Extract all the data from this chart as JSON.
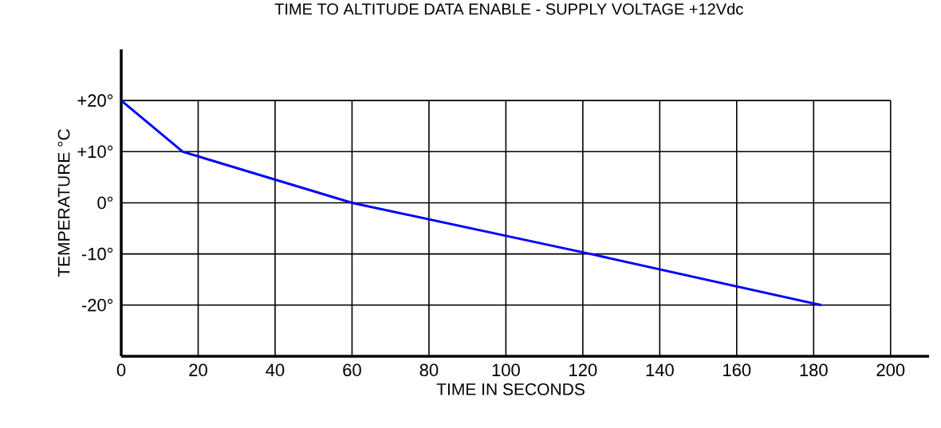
{
  "chart_data": {
    "type": "line",
    "title": "TIME TO ALTITUDE DATA ENABLE - SUPPLY VOLTAGE +12Vdc",
    "xlabel": "TIME IN SECONDS",
    "ylabel": "TEMPERATURE °C",
    "x": [
      0,
      16,
      60,
      122,
      182
    ],
    "values": [
      20,
      10,
      0,
      -10,
      -20
    ],
    "color": "#0000ff",
    "xlim": [
      0,
      210
    ],
    "ylim": [
      -30,
      30
    ],
    "xticks": [
      0,
      20,
      40,
      60,
      80,
      100,
      120,
      140,
      160,
      180,
      200
    ],
    "yticks": [
      {
        "value": -20,
        "label": "-20°"
      },
      {
        "value": -10,
        "label": "-10°"
      },
      {
        "value": 0,
        "label": "0°"
      },
      {
        "value": 10,
        "label": "+10°"
      },
      {
        "value": 20,
        "label": "+20°"
      }
    ],
    "grid": true
  }
}
